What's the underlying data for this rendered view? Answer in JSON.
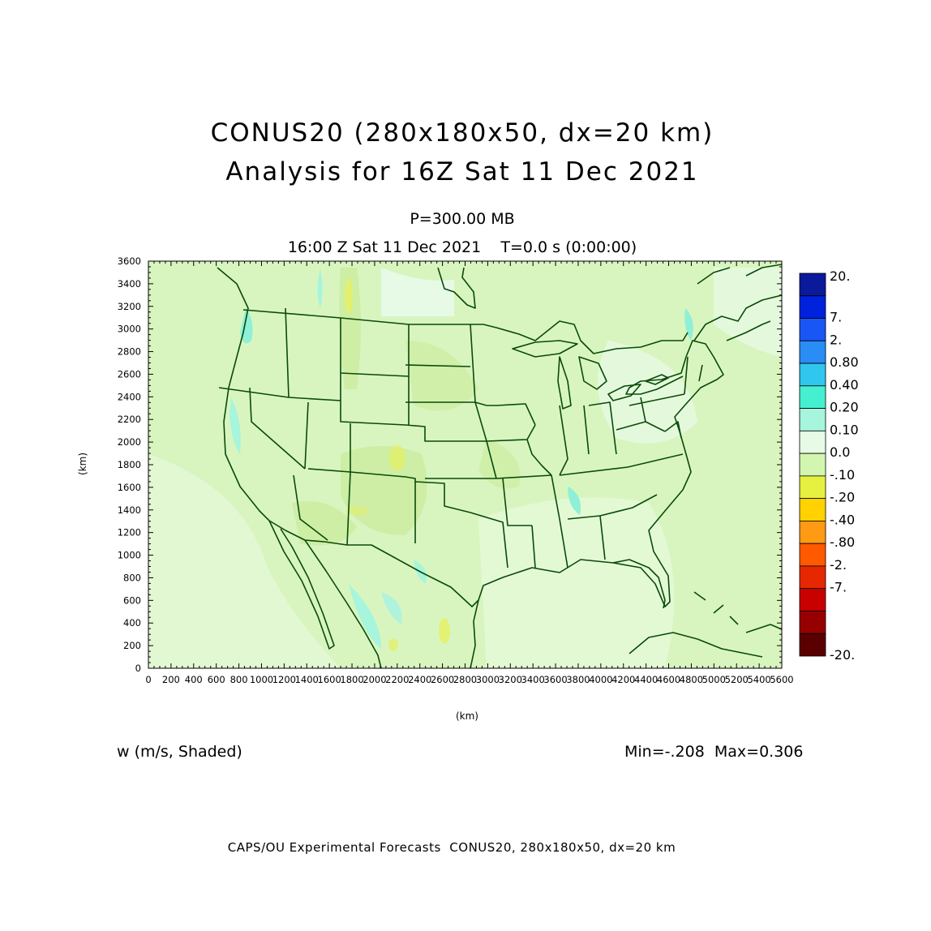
{
  "header": {
    "title_line1": "CONUS20 (280x180x50, dx=20 km)",
    "title_line2": "Analysis for 16Z Sat 11 Dec 2021",
    "level": "P=300.00 MB",
    "valid_time": "16:00 Z Sat 11 Dec 2021    T=0.0 s (0:00:00)"
  },
  "map": {
    "x_axis_label": "(km)",
    "y_axis_label": "(km)",
    "x_range_km": [
      0,
      5600
    ],
    "y_range_km": [
      0,
      3600
    ],
    "x_ticks": [
      "0",
      "200",
      "400",
      "600",
      "800",
      "1000",
      "1200",
      "1400",
      "1600",
      "1800",
      "2000",
      "2200",
      "2400",
      "2600",
      "2800",
      "3000",
      "3200",
      "3400",
      "3600",
      "3800",
      "4000",
      "4200",
      "4400",
      "4600",
      "4800",
      "5000",
      "5200",
      "5400",
      "5600"
    ],
    "y_ticks": [
      "0",
      "200",
      "400",
      "600",
      "800",
      "1000",
      "1200",
      "1400",
      "1600",
      "1800",
      "2000",
      "2200",
      "2400",
      "2600",
      "2800",
      "3000",
      "3200",
      "3400",
      "3600"
    ],
    "background_color": "#d8f5c0",
    "boundary_color": "#0a4a0a"
  },
  "colorbar": {
    "labels": [
      "20.",
      "7.",
      "2.",
      "0.80",
      "0.40",
      "0.20",
      "0.10",
      "0.0",
      "-.10",
      "-.20",
      "-.40",
      "-.80",
      "-2.",
      "-7.",
      "-20."
    ],
    "colors": [
      "#0a1a9a",
      "#0022dd",
      "#1a55f5",
      "#2a8cf5",
      "#30c6ee",
      "#44f0d0",
      "#a6f5dc",
      "#e6fae6",
      "#d2f5b0",
      "#e6f040",
      "#ffd200",
      "#ff9a14",
      "#ff5a00",
      "#e62800",
      "#c80000",
      "#960000",
      "#5a0000"
    ]
  },
  "footer": {
    "variable_label": "w (m/s, Shaded)",
    "min_max": "Min=-.208  Max=0.306",
    "credit": "CAPS/OU Experimental Forecasts  CONUS20, 280x180x50, dx=20 km"
  }
}
